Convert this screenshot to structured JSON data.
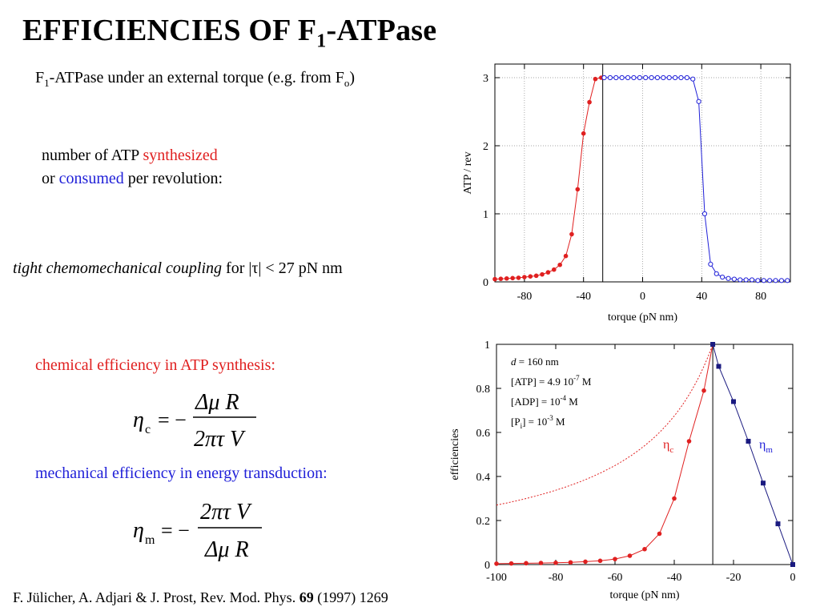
{
  "slide": {
    "title_main": "EFFICIENCIES OF F",
    "title_sub": "1",
    "title_tail": "-ATPase",
    "subtitle_pre": "F",
    "subtitle_sub1": "1",
    "subtitle_mid": "-ATPase under an external torque (e.g. from F",
    "subtitle_sub2": "o",
    "subtitle_end": ")",
    "line1_pre": "number of ATP ",
    "line1_red": "synthesized",
    "line2_pre": "or ",
    "line2_blue": "consumed",
    "line2_post": " per revolution:",
    "coupling_italic": "tight chemomechanical coupling",
    "coupling_rest": " for |τ| < 27 pN nm",
    "chem_heading": "chemical efficiency in ATP synthesis:",
    "mech_heading": "mechanical efficiency in energy transduction:",
    "citation_pre": "F. Jülicher, A. Adjari & J. Prost, Rev. Mod. Phys. ",
    "citation_vol": "69",
    "citation_post": " (1997) 1269"
  },
  "formulas": {
    "eta": "η",
    "sub_c": "c",
    "sub_m": "m",
    "equals_minus": "= −",
    "delta_mu_R": "Δμ R",
    "two_pi_tau_V": "2πτ V"
  },
  "colors": {
    "red": "#e02020",
    "blue": "#2020d8",
    "navy": "#1a1a80",
    "grid": "#888888"
  },
  "chart_data": [
    {
      "type": "line",
      "xlabel": "torque   (pN nm)",
      "ylabel": "ATP / rev",
      "xlim": [
        -100,
        100
      ],
      "ylim": [
        0,
        3.2
      ],
      "xticks": [
        -80,
        -40,
        0,
        40,
        80
      ],
      "yticks": [
        0,
        1,
        2,
        3
      ],
      "vline": -27,
      "grid": "dotted",
      "series": [
        {
          "color": "#e02020",
          "marker": "filled-circle",
          "x": [
            -100,
            -96,
            -92,
            -88,
            -84,
            -80,
            -76,
            -72,
            -68,
            -64,
            -60,
            -56,
            -52,
            -48,
            -44,
            -40,
            -36,
            -32,
            -28
          ],
          "y": [
            0.04,
            0.045,
            0.05,
            0.055,
            0.06,
            0.07,
            0.08,
            0.09,
            0.11,
            0.14,
            0.18,
            0.25,
            0.38,
            0.7,
            1.36,
            2.18,
            2.64,
            2.98,
            3.0
          ]
        },
        {
          "color": "#2020d8",
          "marker": "open-circle",
          "x": [
            -26,
            -22,
            -18,
            -14,
            -10,
            -6,
            -2,
            2,
            6,
            10,
            14,
            18,
            22,
            26,
            30,
            34,
            38,
            42,
            46,
            50,
            54,
            58,
            62,
            66,
            70,
            74,
            78,
            82,
            86,
            90,
            94,
            98
          ],
          "y": [
            3.0,
            3.0,
            3.0,
            3.0,
            3.0,
            3.0,
            3.0,
            3.0,
            3.0,
            3.0,
            3.0,
            3.0,
            3.0,
            3.0,
            3.0,
            2.98,
            2.65,
            1.0,
            0.26,
            0.12,
            0.07,
            0.05,
            0.04,
            0.03,
            0.03,
            0.03,
            0.02,
            0.02,
            0.02,
            0.02,
            0.02,
            0.02
          ]
        }
      ]
    },
    {
      "type": "line",
      "xlabel": "torque (pN nm)",
      "ylabel": "efficiencies",
      "xlim": [
        -100,
        0
      ],
      "ylim": [
        0,
        1
      ],
      "xticks": [
        -100,
        -80,
        -60,
        -40,
        -20,
        0
      ],
      "yticks": [
        0,
        0.2,
        0.4,
        0.6,
        0.8,
        1
      ],
      "vline": -27,
      "legend_lines": [
        {
          "pre": "d = 160 nm",
          "sup": ""
        },
        {
          "pre": "[ATP] = 4.9 10",
          "sup": "-7",
          "post": " M"
        },
        {
          "pre": "[ADP] = 10",
          "sup": "-4",
          "post": " M"
        },
        {
          "pre": "[P",
          "sub": "i",
          "mid": "] = 10",
          "sup": "-3",
          "post": " M"
        }
      ],
      "series_labels": {
        "c": "η",
        "c_sub": "c",
        "m": "η",
        "m_sub": "m"
      },
      "series": [
        {
          "color": "#e02020",
          "marker": "filled-circle",
          "x": [
            -100,
            -95,
            -90,
            -85,
            -80,
            -75,
            -70,
            -65,
            -60,
            -55,
            -50,
            -45,
            -40,
            -35,
            -30,
            -27
          ],
          "y": [
            0.004,
            0.005,
            0.006,
            0.007,
            0.008,
            0.01,
            0.013,
            0.017,
            0.025,
            0.04,
            0.07,
            0.14,
            0.3,
            0.56,
            0.79,
            1.0
          ]
        },
        {
          "color": "#e02020",
          "style": "dotted",
          "curve": "27/|torque|",
          "x_from": -100,
          "x_to": -27
        },
        {
          "color": "#1a1a80",
          "marker": "filled-square",
          "x": [
            -27,
            -25,
            -20,
            -15,
            -10,
            -5,
            0
          ],
          "y": [
            1.0,
            0.9,
            0.74,
            0.56,
            0.37,
            0.185,
            0.0
          ]
        }
      ]
    }
  ]
}
